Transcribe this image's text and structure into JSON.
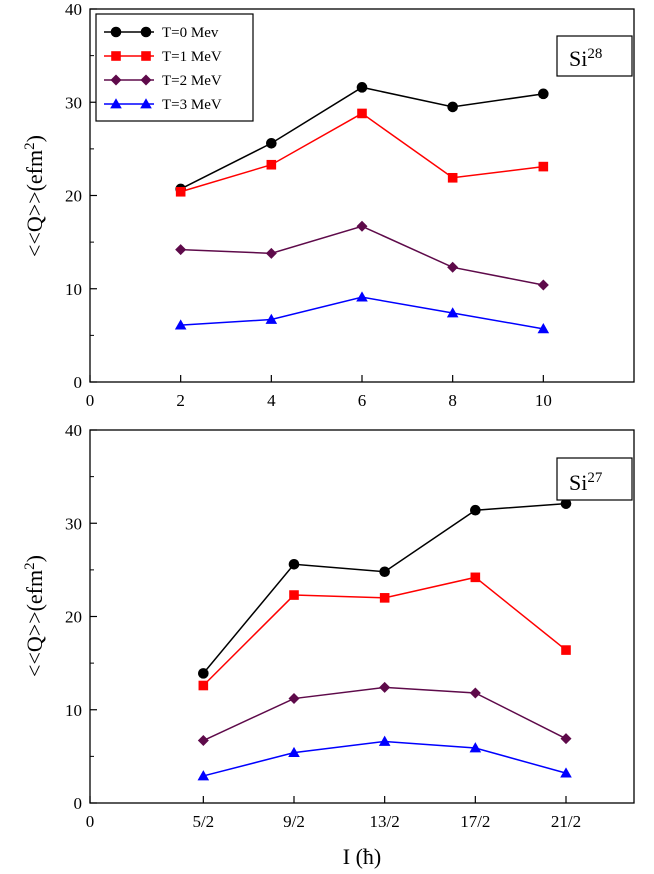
{
  "chart_data": [
    {
      "type": "line",
      "label": "Si",
      "label_sup": "28",
      "ylabel": "<<Q>>(efm",
      "ylabel_sup": "2",
      "ylabel_close": ")",
      "xlim": [
        0,
        12
      ],
      "ylim": [
        0,
        40
      ],
      "yticks": [
        0,
        10,
        20,
        30,
        40
      ],
      "xticks": [
        {
          "v": 0,
          "label": "0"
        },
        {
          "v": 2,
          "label": "2"
        },
        {
          "v": 4,
          "label": "4"
        },
        {
          "v": 6,
          "label": "6"
        },
        {
          "v": 8,
          "label": "8"
        },
        {
          "v": 10,
          "label": "10"
        }
      ],
      "x": [
        2,
        4,
        6,
        8,
        10
      ],
      "legend": "top-left",
      "series": [
        {
          "name": "T=0 Mev",
          "color": "#000000",
          "marker": "circle",
          "values": [
            20.7,
            25.6,
            31.6,
            29.5,
            30.9
          ]
        },
        {
          "name": "T=1 MeV",
          "color": "#ff0000",
          "marker": "square",
          "values": [
            20.4,
            23.3,
            28.8,
            21.9,
            23.1
          ]
        },
        {
          "name": "T=2 MeV",
          "color": "#5e0a4a",
          "marker": "diamond",
          "values": [
            14.2,
            13.8,
            16.7,
            12.3,
            10.4
          ]
        },
        {
          "name": "T=3 MeV",
          "color": "#0000ff",
          "marker": "triangle",
          "values": [
            6.1,
            6.7,
            9.1,
            7.4,
            5.7
          ]
        }
      ]
    },
    {
      "type": "line",
      "label": "Si",
      "label_sup": "27",
      "ylabel": "<<Q>>(efm",
      "ylabel_sup": "2",
      "ylabel_close": ")",
      "xlabel": "I (ħ)",
      "xlim": [
        0,
        12
      ],
      "ylim": [
        0,
        40
      ],
      "yticks": [
        0,
        10,
        20,
        30,
        40
      ],
      "xticks": [
        {
          "v": 0,
          "label": "0"
        },
        {
          "v": 2.5,
          "label": "5/2"
        },
        {
          "v": 4.5,
          "label": "9/2"
        },
        {
          "v": 6.5,
          "label": "13/2"
        },
        {
          "v": 8.5,
          "label": "17/2"
        },
        {
          "v": 10.5,
          "label": "21/2"
        }
      ],
      "x": [
        2.5,
        4.5,
        6.5,
        8.5,
        10.5
      ],
      "series": [
        {
          "name": "T=0 Mev",
          "color": "#000000",
          "marker": "circle",
          "values": [
            13.9,
            25.6,
            24.8,
            31.4,
            32.1
          ]
        },
        {
          "name": "T=1 MeV",
          "color": "#ff0000",
          "marker": "square",
          "values": [
            12.6,
            22.3,
            22.0,
            24.2,
            16.4
          ]
        },
        {
          "name": "T=2 MeV",
          "color": "#5e0a4a",
          "marker": "diamond",
          "values": [
            6.7,
            11.2,
            12.4,
            11.8,
            6.9
          ]
        },
        {
          "name": "T=3 MeV",
          "color": "#0000ff",
          "marker": "triangle",
          "values": [
            2.9,
            5.4,
            6.6,
            5.9,
            3.2
          ]
        }
      ]
    }
  ]
}
